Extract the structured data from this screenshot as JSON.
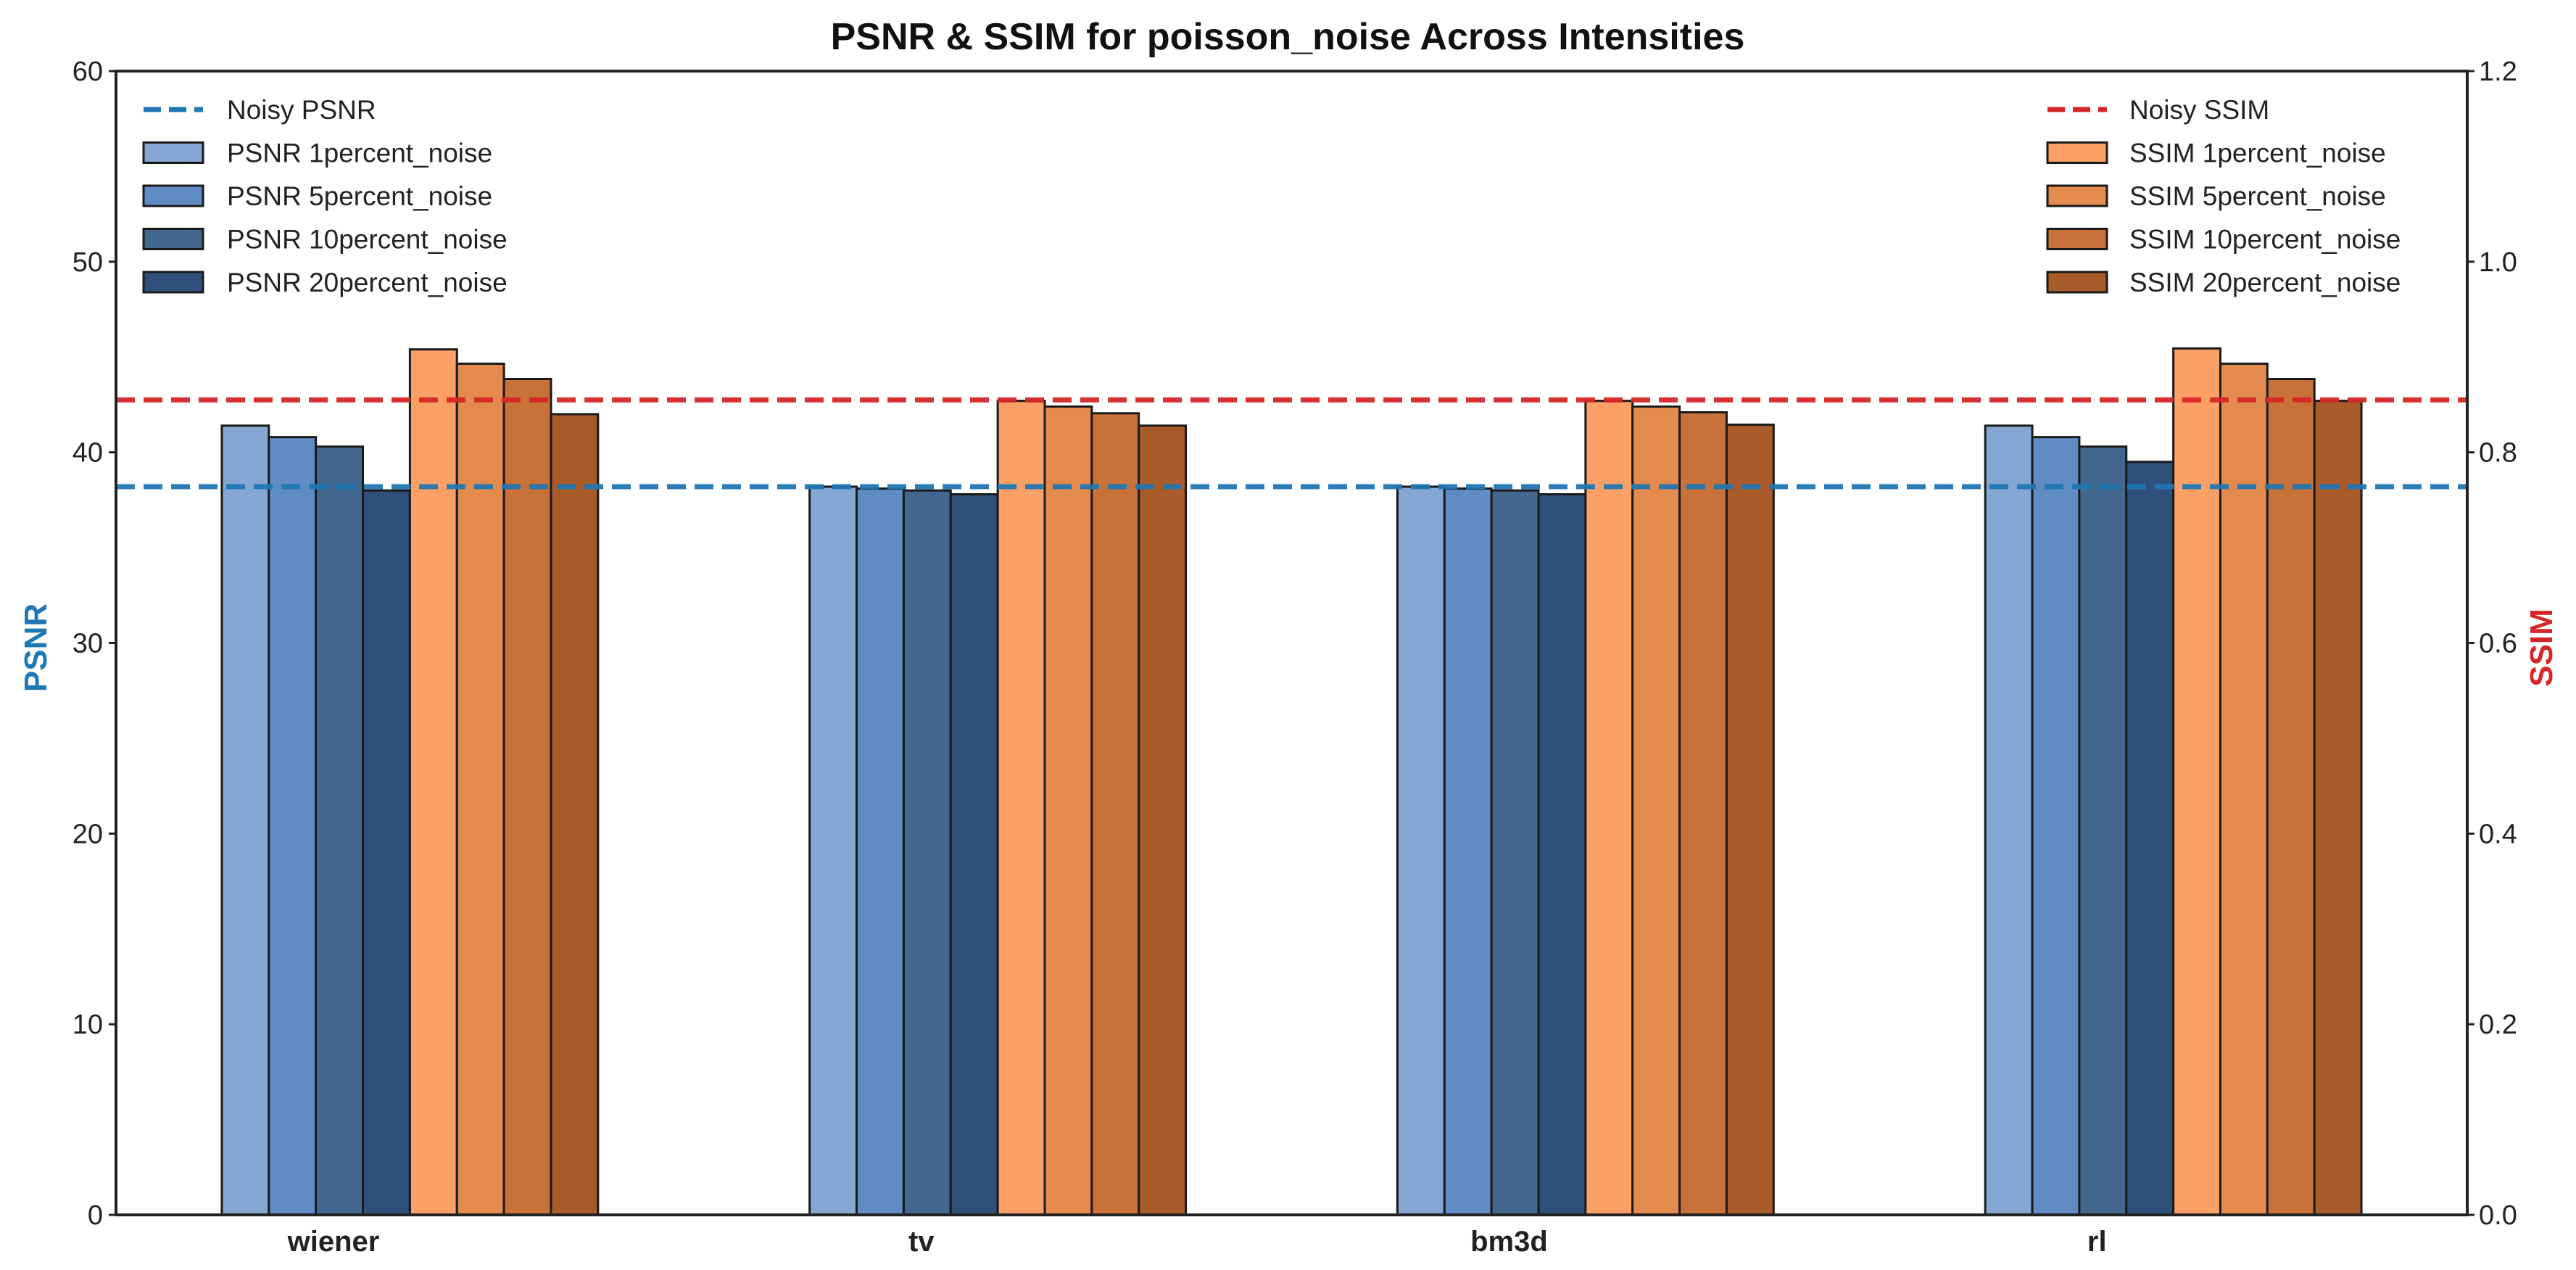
{
  "chart_data": {
    "type": "bar",
    "title": "PSNR & SSIM for poisson_noise Across Intensities",
    "categories": [
      "wiener",
      "tv",
      "bm3d",
      "rl"
    ],
    "left_axis": {
      "label": "PSNR",
      "color": "#1f77b4",
      "range": [
        0,
        60
      ],
      "ticks": [
        0,
        10,
        20,
        30,
        40,
        50,
        60
      ]
    },
    "right_axis": {
      "label": "SSIM",
      "color": "#d62728",
      "range": [
        0,
        1.2
      ],
      "ticks": [
        "0.0",
        "0.2",
        "0.4",
        "0.6",
        "0.8",
        "1.0",
        "1.2"
      ]
    },
    "reference_lines": [
      {
        "name": "Noisy PSNR",
        "axis": "left",
        "value": 38.2,
        "color": "#1f77b4",
        "style": "dashed"
      },
      {
        "name": "Noisy SSIM",
        "axis": "right",
        "value": 0.855,
        "color": "#d62728",
        "style": "dashed"
      }
    ],
    "series": [
      {
        "name": "PSNR 1percent_noise",
        "axis": "left",
        "color": "#84a7d3",
        "values": [
          41.4,
          38.2,
          38.2,
          41.4
        ]
      },
      {
        "name": "PSNR 5percent_noise",
        "axis": "left",
        "color": "#5f8cc4",
        "values": [
          40.8,
          38.1,
          38.1,
          40.8
        ]
      },
      {
        "name": "PSNR 10percent_noise",
        "axis": "left",
        "color": "#43688f",
        "values": [
          40.3,
          38.0,
          38.0,
          40.3
        ]
      },
      {
        "name": "PSNR 20percent_noise",
        "axis": "left",
        "color": "#30507c",
        "values": [
          38.0,
          37.8,
          37.8,
          39.5
        ]
      },
      {
        "name": "SSIM 1percent_noise",
        "axis": "right",
        "color": "#fba066",
        "values": [
          0.908,
          0.854,
          0.854,
          0.909
        ]
      },
      {
        "name": "SSIM 5percent_noise",
        "axis": "right",
        "color": "#e38a4e",
        "values": [
          0.893,
          0.848,
          0.848,
          0.893
        ]
      },
      {
        "name": "SSIM 10percent_noise",
        "axis": "right",
        "color": "#c87239",
        "values": [
          0.877,
          0.841,
          0.842,
          0.877
        ]
      },
      {
        "name": "SSIM 20percent_noise",
        "axis": "right",
        "color": "#a95b29",
        "values": [
          0.84,
          0.828,
          0.829,
          0.854
        ]
      }
    ],
    "legend_left": [
      "Noisy PSNR",
      "PSNR 1percent_noise",
      "PSNR 5percent_noise",
      "PSNR 10percent_noise",
      "PSNR 20percent_noise"
    ],
    "legend_right": [
      "Noisy SSIM",
      "SSIM 1percent_noise",
      "SSIM 5percent_noise",
      "SSIM 10percent_noise",
      "SSIM 20percent_noise"
    ],
    "grid": false
  }
}
